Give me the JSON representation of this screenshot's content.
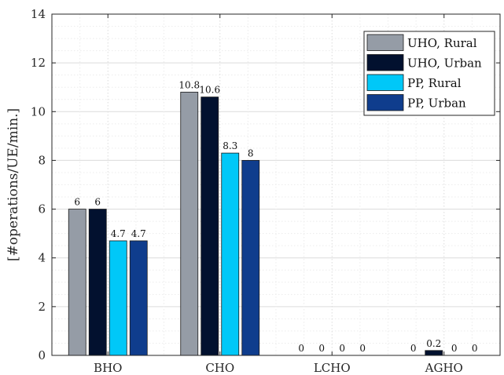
{
  "chart_data": {
    "type": "bar",
    "categories": [
      "BHO",
      "CHO",
      "LCHO",
      "AGHO"
    ],
    "series": [
      {
        "name": "UHO, Rural",
        "values": [
          6,
          10.8,
          0,
          0
        ],
        "labels": [
          "6",
          "10.8",
          "0",
          "0"
        ],
        "color": "#959ca6"
      },
      {
        "name": "UHO, Urban",
        "values": [
          6,
          10.6,
          0,
          0.2
        ],
        "labels": [
          "6",
          "10.6",
          "0",
          "0.2"
        ],
        "color": "#02112f"
      },
      {
        "name": "PP, Rural",
        "values": [
          4.7,
          8.3,
          0,
          0
        ],
        "labels": [
          "4.7",
          "8.3",
          "0",
          "0"
        ],
        "color": "#00c8f8"
      },
      {
        "name": "PP, Urban",
        "values": [
          4.7,
          8,
          0,
          0
        ],
        "labels": [
          "4.7",
          "8",
          "0",
          "0"
        ],
        "color": "#0f3d8d"
      }
    ],
    "xlabel": "",
    "ylabel": "[#operations/UE/min.]",
    "ylim": [
      0,
      14
    ],
    "yticks": [
      0,
      2,
      4,
      6,
      8,
      10,
      12,
      14
    ],
    "grid": true,
    "minor_grid": true,
    "legend_position": "top-right"
  }
}
